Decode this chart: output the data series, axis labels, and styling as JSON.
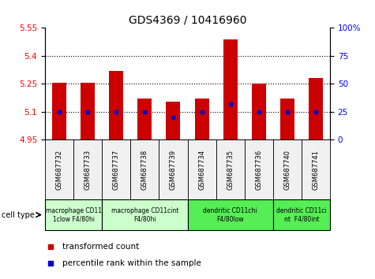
{
  "title": "GDS4369 / 10416960",
  "samples": [
    "GSM687732",
    "GSM687733",
    "GSM687737",
    "GSM687738",
    "GSM687739",
    "GSM687734",
    "GSM687735",
    "GSM687736",
    "GSM687740",
    "GSM687741"
  ],
  "transformed_counts": [
    5.255,
    5.255,
    5.32,
    5.17,
    5.155,
    5.17,
    5.49,
    5.25,
    5.17,
    5.28
  ],
  "percentile_ranks": [
    25,
    25,
    25,
    25,
    20,
    25,
    32,
    25,
    25,
    25
  ],
  "ylim_left": [
    4.95,
    5.55
  ],
  "ylim_right": [
    0,
    100
  ],
  "yticks_left": [
    4.95,
    5.1,
    5.25,
    5.4,
    5.55
  ],
  "yticks_right": [
    0,
    25,
    50,
    75,
    100
  ],
  "bar_color": "#cc0000",
  "dot_color": "#0000cc",
  "bar_width": 0.5,
  "cell_type_groups": [
    {
      "label": "macrophage CD11\n1clow F4/80hi",
      "start": 0,
      "end": 2,
      "color": "#ccffcc"
    },
    {
      "label": "macrophage CD11cint\nF4/80hi",
      "start": 2,
      "end": 5,
      "color": "#ccffcc"
    },
    {
      "label": "dendritic CD11chi\nF4/80low",
      "start": 5,
      "end": 8,
      "color": "#55ee55"
    },
    {
      "label": "dendritic CD11ci\nnt  F4/80int",
      "start": 8,
      "end": 10,
      "color": "#55ee55"
    }
  ],
  "legend_items": [
    {
      "label": "transformed count",
      "color": "#cc0000"
    },
    {
      "label": "percentile rank within the sample",
      "color": "#0000cc"
    }
  ],
  "cell_type_label": "cell type",
  "bg_color": "#f0f0f0"
}
